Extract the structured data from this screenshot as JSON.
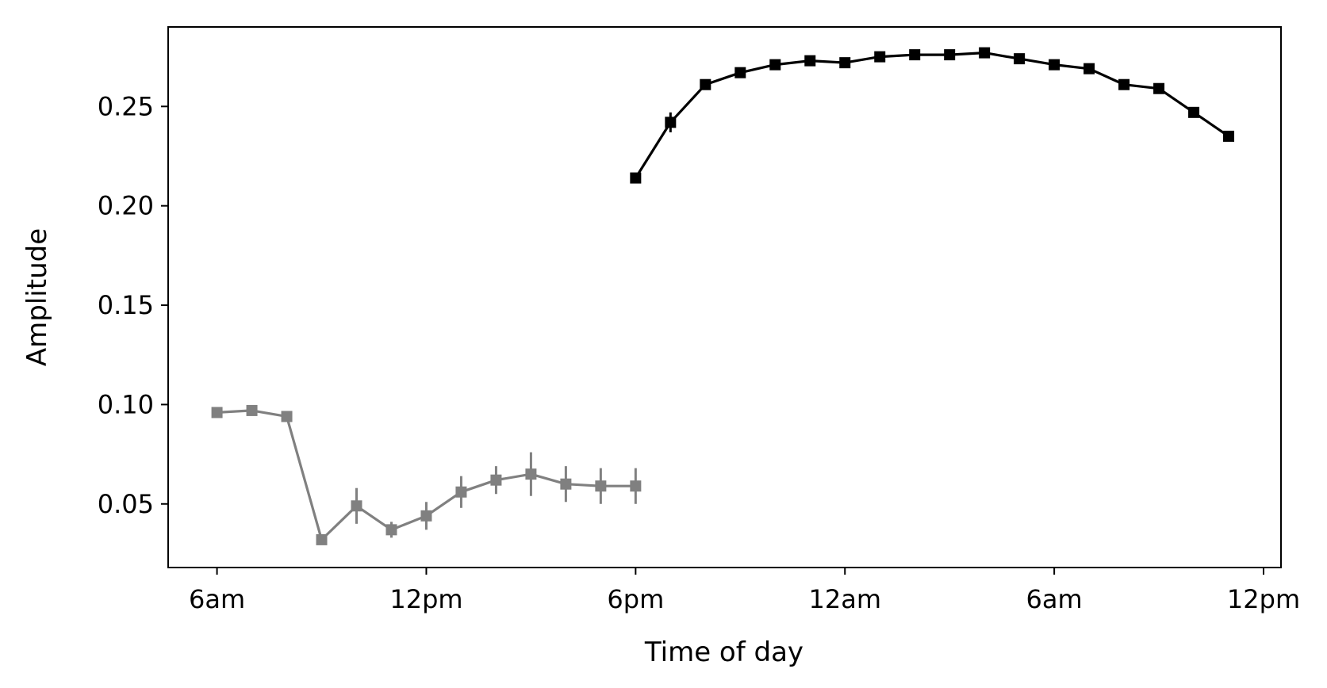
{
  "chart_data": {
    "type": "line",
    "title": "",
    "xlabel": "Time of day",
    "ylabel": "Amplitude",
    "x_ticks": [
      "6am",
      "12pm",
      "6pm",
      "12am",
      "6am",
      "12pm"
    ],
    "x_tick_hours": [
      6,
      12,
      18,
      24,
      30,
      36
    ],
    "x_range_hours": [
      4.6,
      36.5
    ],
    "y_ticks": [
      "0.05",
      "0.10",
      "0.15",
      "0.20",
      "0.25"
    ],
    "y_tick_values": [
      0.05,
      0.1,
      0.15,
      0.2,
      0.25
    ],
    "ylim": [
      0.018,
      0.29
    ],
    "grid": false,
    "legend": "none",
    "marker": "square",
    "series": [
      {
        "color": "#808080",
        "x_hours": [
          6,
          7,
          8,
          9,
          10,
          11,
          12,
          13,
          14,
          15,
          16,
          17,
          18
        ],
        "values": [
          0.096,
          0.097,
          0.094,
          0.032,
          0.049,
          0.037,
          0.044,
          0.056,
          0.062,
          0.065,
          0.06,
          0.059,
          0.059
        ],
        "errors": [
          0.002,
          0.002,
          0.002,
          0.002,
          0.009,
          0.004,
          0.007,
          0.008,
          0.007,
          0.011,
          0.009,
          0.009,
          0.009
        ]
      },
      {
        "color": "#000000",
        "x_hours": [
          18,
          19,
          20,
          21,
          22,
          23,
          24,
          25,
          26,
          27,
          28,
          29,
          30,
          31,
          32,
          33,
          34,
          35
        ],
        "values": [
          0.214,
          0.242,
          0.261,
          0.267,
          0.271,
          0.273,
          0.272,
          0.275,
          0.276,
          0.276,
          0.277,
          0.274,
          0.271,
          0.269,
          0.261,
          0.259,
          0.247,
          0.235
        ],
        "errors": [
          0.002,
          0.005,
          0.002,
          0.002,
          0.002,
          0.002,
          0.002,
          0.002,
          0.002,
          0.002,
          0.002,
          0.002,
          0.002,
          0.002,
          0.002,
          0.002,
          0.002,
          0.002
        ]
      }
    ]
  }
}
